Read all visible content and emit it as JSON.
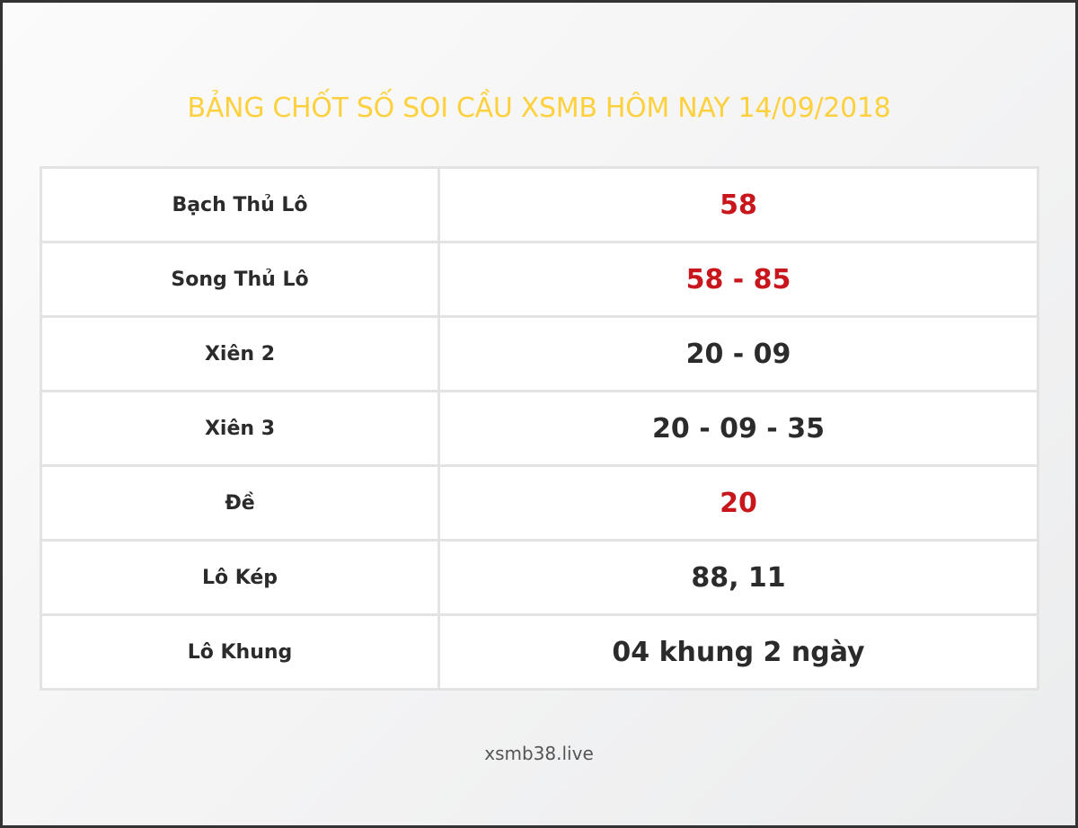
{
  "title": "BẢNG CHỐT SỐ SOI CẦU XSMB HÔM NAY 14/09/2018",
  "colors": {
    "title": "#fdd13e",
    "highlight": "#c8171c",
    "text": "#2b2b2b"
  },
  "rows": [
    {
      "label": "Bạch Thủ Lô",
      "value": "58",
      "highlight": true
    },
    {
      "label": "Song Thủ Lô",
      "value": "58 - 85",
      "highlight": true
    },
    {
      "label": "Xiên 2",
      "value": "20 - 09",
      "highlight": false
    },
    {
      "label": "Xiên 3",
      "value": "20 - 09 - 35",
      "highlight": false
    },
    {
      "label": "Đề",
      "value": "20",
      "highlight": true
    },
    {
      "label": "Lô Kép",
      "value": "88, 11",
      "highlight": false
    },
    {
      "label": "Lô Khung",
      "value": "04 khung 2 ngày",
      "highlight": false
    }
  ],
  "footer": "xsmb38.live"
}
